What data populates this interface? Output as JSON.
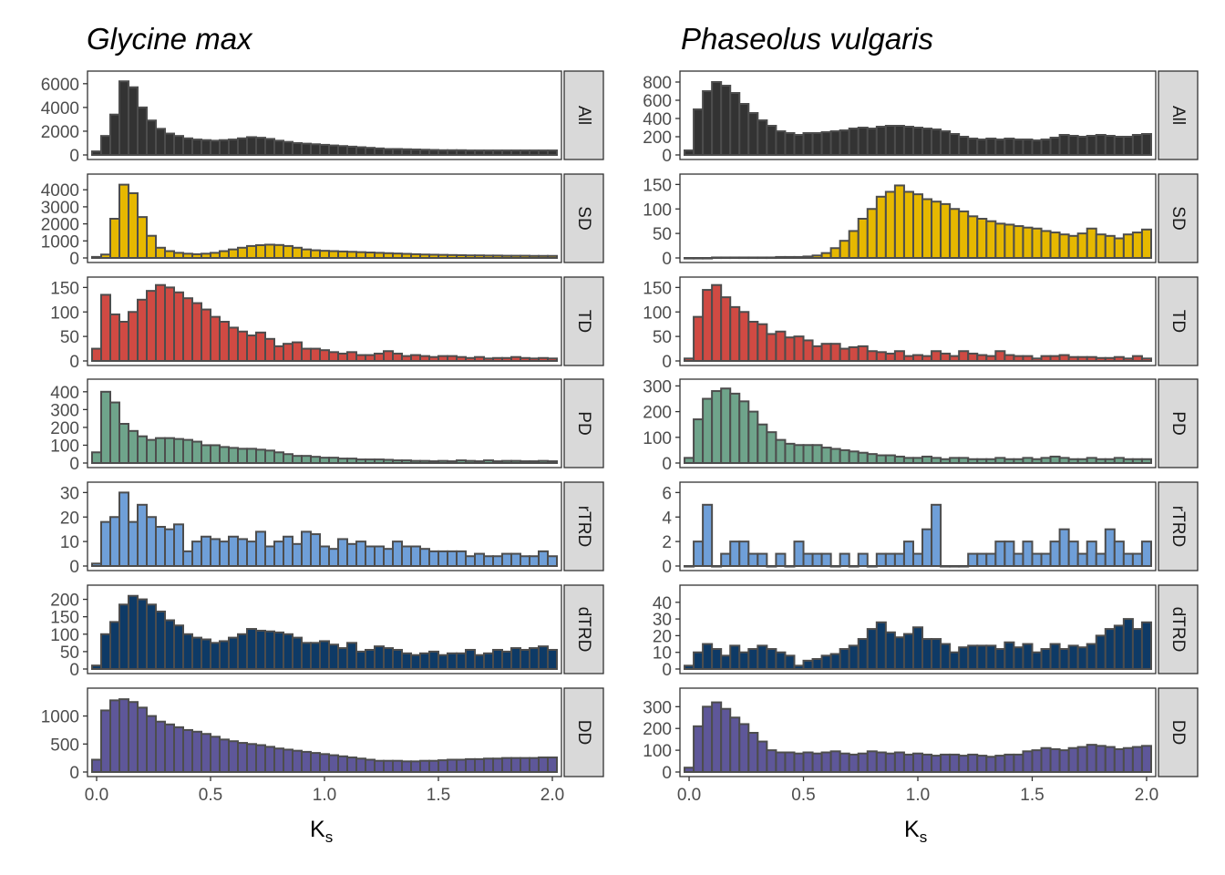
{
  "xlabel_main": "K",
  "xlabel_sub": "s",
  "x_ticks": [
    "0.0",
    "0.5",
    "1.0",
    "1.5",
    "2.0"
  ],
  "chart_data": [
    {
      "type": "bar",
      "title": "Glycine max",
      "bin_width": 0.04,
      "bin_start": -0.02,
      "xlim": [
        -0.04,
        2.04
      ],
      "panels": [
        {
          "label": "All",
          "color": "#333333",
          "ylim": [
            0,
            6600
          ],
          "yticks": [
            0,
            2000,
            4000,
            6000
          ],
          "values": [
            300,
            1600,
            3400,
            6200,
            5700,
            4000,
            2900,
            2200,
            1800,
            1600,
            1400,
            1300,
            1250,
            1200,
            1250,
            1300,
            1400,
            1500,
            1450,
            1350,
            1200,
            1100,
            1000,
            950,
            900,
            850,
            800,
            750,
            700,
            650,
            600,
            550,
            500,
            500,
            480,
            460,
            440,
            420,
            400,
            400,
            400,
            380,
            380,
            380,
            380,
            380,
            380,
            380,
            380,
            380,
            380,
            380,
            380,
            380,
            380,
            380,
            380,
            380,
            380,
            380,
            380,
            380,
            380,
            380,
            380,
            380,
            380,
            380,
            380,
            380,
            380,
            380,
            380,
            380,
            380,
            380,
            380,
            380,
            380,
            380,
            380,
            380,
            380,
            380,
            380,
            380,
            380,
            380,
            380,
            380,
            380,
            380,
            380,
            380,
            380,
            380,
            380,
            380,
            380,
            380,
            380,
            380,
            380,
            380,
            380,
            380,
            380,
            380,
            380,
            380,
            380,
            380,
            380,
            380,
            380,
            380,
            380,
            380,
            380,
            380,
            380,
            380
          ]
        },
        {
          "label": "SD",
          "color": "#E6B800",
          "ylim": [
            0,
            4600
          ],
          "yticks": [
            0,
            1000,
            2000,
            3000,
            4000
          ],
          "values": [
            60,
            200,
            2300,
            4300,
            3800,
            2400,
            1300,
            600,
            400,
            300,
            250,
            220,
            250,
            300,
            400,
            500,
            600,
            700,
            750,
            780,
            760,
            700,
            600,
            500,
            450,
            420,
            400,
            380,
            360,
            340,
            320,
            300,
            280,
            260,
            240,
            220,
            200,
            190,
            180,
            170,
            160,
            150,
            150,
            140,
            140,
            130,
            130,
            130,
            120,
            120,
            120,
            110,
            110,
            110,
            100,
            100,
            100,
            100,
            100,
            100,
            100
          ]
        },
        {
          "label": "TD",
          "color": "#D04A43",
          "ylim": [
            0,
            160
          ],
          "yticks": [
            0,
            50,
            100,
            150
          ],
          "values": [
            25,
            135,
            95,
            80,
            100,
            125,
            143,
            155,
            150,
            140,
            128,
            118,
            105,
            90,
            80,
            68,
            60,
            52,
            58,
            45,
            30,
            35,
            38,
            25,
            25,
            22,
            18,
            15,
            18,
            12,
            12,
            15,
            20,
            15,
            10,
            12,
            10,
            8,
            10,
            10,
            8,
            6,
            8,
            5,
            6,
            6,
            8,
            6,
            5,
            6,
            5,
            6,
            5,
            5,
            5,
            6,
            5,
            5,
            5,
            5,
            5,
            8
          ]
        },
        {
          "label": "PD",
          "color": "#6FA48B",
          "ylim": [
            0,
            440
          ],
          "yticks": [
            0,
            100,
            200,
            300,
            400
          ],
          "values": [
            60,
            400,
            340,
            220,
            180,
            150,
            130,
            140,
            140,
            135,
            130,
            120,
            100,
            100,
            90,
            85,
            80,
            80,
            75,
            70,
            60,
            50,
            40,
            40,
            35,
            30,
            30,
            25,
            25,
            20,
            20,
            20,
            18,
            15,
            15,
            12,
            12,
            10,
            12,
            10,
            15,
            12,
            10,
            15,
            10,
            12,
            12,
            10,
            10,
            12,
            10,
            10,
            10,
            12,
            10,
            10,
            10,
            10,
            10,
            10,
            10
          ]
        },
        {
          "label": "rTRD",
          "color": "#6F9FD8",
          "ylim": [
            0,
            32
          ],
          "yticks": [
            0,
            10,
            20,
            30
          ],
          "values": [
            1,
            18,
            20,
            30,
            18,
            25,
            20,
            16,
            15,
            17,
            6,
            10,
            12,
            11,
            10,
            12,
            11,
            10,
            14,
            8,
            10,
            12,
            9,
            14,
            13,
            8,
            7,
            11,
            9,
            10,
            8,
            8,
            7,
            10,
            8,
            8,
            7,
            6,
            6,
            6,
            6,
            4,
            5,
            4,
            4,
            5,
            5,
            4,
            4,
            6,
            4,
            8,
            7,
            4,
            4,
            5,
            4,
            8,
            8,
            3,
            5,
            3
          ]
        },
        {
          "label": "dTRD",
          "color": "#0E3A66",
          "ylim": [
            0,
            225
          ],
          "yticks": [
            0,
            50,
            100,
            150,
            200
          ],
          "values": [
            10,
            100,
            135,
            185,
            210,
            200,
            185,
            165,
            140,
            125,
            100,
            90,
            85,
            75,
            80,
            90,
            100,
            115,
            110,
            108,
            105,
            100,
            90,
            75,
            75,
            80,
            70,
            60,
            75,
            50,
            55,
            65,
            60,
            55,
            45,
            40,
            45,
            50,
            40,
            45,
            45,
            55,
            40,
            45,
            55,
            50,
            60,
            55,
            60,
            65,
            55,
            70,
            70,
            80,
            85,
            70,
            85,
            90,
            85,
            75,
            60,
            15
          ]
        },
        {
          "label": "DD",
          "color": "#5E5799",
          "ylim": [
            0,
            1400
          ],
          "yticks": [
            0,
            500,
            1000
          ],
          "values": [
            220,
            1100,
            1280,
            1300,
            1250,
            1150,
            1000,
            900,
            850,
            800,
            750,
            720,
            680,
            630,
            580,
            550,
            520,
            500,
            480,
            450,
            420,
            400,
            380,
            360,
            340,
            320,
            300,
            280,
            260,
            240,
            220,
            200,
            200,
            200,
            190,
            190,
            200,
            200,
            210,
            220,
            220,
            230,
            230,
            240,
            240,
            250,
            250,
            250,
            250,
            260,
            260,
            260,
            250,
            250,
            240,
            230,
            230,
            230,
            220,
            220,
            220,
            220,
            220,
            220
          ]
        }
      ]
    },
    {
      "type": "bar",
      "title": "Phaseolus vulgaris",
      "bin_width": 0.04,
      "bin_start": -0.02,
      "xlim": [
        -0.04,
        2.04
      ],
      "panels": [
        {
          "label": "All",
          "color": "#333333",
          "ylim": [
            0,
            860
          ],
          "yticks": [
            0,
            200,
            400,
            600,
            800
          ],
          "values": [
            50,
            500,
            700,
            800,
            760,
            680,
            560,
            460,
            380,
            320,
            260,
            240,
            220,
            240,
            240,
            250,
            260,
            270,
            290,
            300,
            290,
            310,
            320,
            320,
            310,
            300,
            290,
            280,
            260,
            230,
            200,
            180,
            170,
            180,
            170,
            180,
            170,
            170,
            160,
            170,
            190,
            220,
            210,
            200,
            210,
            220,
            210,
            200,
            200,
            220,
            230,
            240,
            230,
            210,
            200,
            200,
            200,
            200,
            190,
            190,
            200,
            200,
            200,
            190
          ]
        },
        {
          "label": "SD",
          "color": "#E6B800",
          "ylim": [
            0,
            160
          ],
          "yticks": [
            0,
            50,
            100,
            150
          ],
          "values": [
            0,
            0,
            0,
            1,
            1,
            1,
            1,
            1,
            1,
            1,
            2,
            2,
            2,
            3,
            5,
            10,
            20,
            35,
            55,
            80,
            100,
            125,
            135,
            148,
            135,
            130,
            120,
            115,
            110,
            100,
            95,
            85,
            80,
            75,
            70,
            68,
            65,
            62,
            60,
            55,
            52,
            48,
            45,
            50,
            60,
            48,
            45,
            40,
            48,
            52,
            58,
            50,
            48,
            45,
            50,
            48,
            48,
            50,
            45,
            50,
            48,
            40,
            52,
            50,
            48,
            40,
            50,
            40,
            45,
            35,
            35,
            25,
            10
          ]
        },
        {
          "label": "TD",
          "color": "#D04A43",
          "ylim": [
            0,
            160
          ],
          "yticks": [
            0,
            50,
            100,
            150
          ],
          "values": [
            5,
            90,
            145,
            155,
            130,
            110,
            100,
            80,
            75,
            55,
            60,
            48,
            50,
            42,
            30,
            35,
            35,
            25,
            28,
            30,
            20,
            18,
            15,
            20,
            10,
            12,
            10,
            20,
            15,
            10,
            20,
            15,
            12,
            10,
            20,
            12,
            10,
            10,
            5,
            10,
            10,
            12,
            8,
            8,
            8,
            6,
            6,
            8,
            5,
            10,
            5,
            8,
            5,
            5,
            5,
            5,
            5,
            5,
            5,
            5
          ]
        },
        {
          "label": "PD",
          "color": "#6FA48B",
          "ylim": [
            0,
            305
          ],
          "yticks": [
            0,
            100,
            200,
            300
          ],
          "values": [
            20,
            170,
            250,
            280,
            290,
            270,
            240,
            200,
            150,
            120,
            90,
            75,
            70,
            70,
            70,
            60,
            55,
            50,
            45,
            40,
            35,
            30,
            30,
            25,
            20,
            20,
            25,
            20,
            15,
            20,
            20,
            15,
            15,
            15,
            20,
            15,
            15,
            20,
            15,
            20,
            25,
            20,
            15,
            15,
            20,
            15,
            15,
            20,
            15,
            15,
            15,
            15,
            15,
            15,
            15,
            15,
            15,
            15,
            15,
            15,
            15,
            15,
            15,
            15
          ]
        },
        {
          "label": "rTRD",
          "color": "#6F9FD8",
          "ylim": [
            0,
            6.4
          ],
          "yticks": [
            0,
            2,
            4,
            6
          ],
          "values": [
            0,
            2,
            5,
            0,
            1,
            2,
            2,
            1,
            1,
            0,
            1,
            0,
            2,
            1,
            1,
            1,
            0,
            1,
            0,
            1,
            0,
            1,
            1,
            1,
            2,
            1,
            3,
            5,
            0,
            0,
            0,
            1,
            1,
            1,
            2,
            2,
            1,
            2,
            1,
            1,
            2,
            3,
            2,
            1,
            2,
            1,
            3,
            2,
            1,
            1,
            2,
            3,
            5,
            5,
            4,
            3,
            2,
            2,
            1,
            6
          ]
        },
        {
          "label": "dTRD",
          "color": "#0E3A66",
          "ylim": [
            0,
            47
          ],
          "yticks": [
            0,
            10,
            20,
            30,
            40
          ],
          "values": [
            2,
            10,
            15,
            12,
            8,
            14,
            10,
            12,
            14,
            12,
            10,
            8,
            2,
            5,
            6,
            8,
            9,
            12,
            14,
            18,
            24,
            28,
            22,
            19,
            21,
            25,
            18,
            18,
            15,
            10,
            13,
            14,
            14,
            14,
            12,
            16,
            13,
            15,
            10,
            12,
            15,
            12,
            14,
            13,
            15,
            20,
            24,
            26,
            30,
            24,
            28,
            35,
            40,
            38,
            37,
            35,
            38,
            40,
            38,
            35,
            44,
            30,
            45,
            35,
            20,
            10
          ]
        },
        {
          "label": "DD",
          "color": "#5E5799",
          "ylim": [
            0,
            360
          ],
          "yticks": [
            0,
            100,
            200,
            300
          ],
          "values": [
            20,
            210,
            300,
            320,
            290,
            250,
            220,
            180,
            140,
            100,
            90,
            90,
            85,
            90,
            85,
            90,
            95,
            85,
            80,
            85,
            95,
            90,
            85,
            90,
            80,
            85,
            80,
            75,
            80,
            80,
            75,
            80,
            75,
            70,
            75,
            80,
            80,
            95,
            100,
            110,
            105,
            100,
            110,
            115,
            125,
            120,
            115,
            105,
            110,
            115,
            120,
            120,
            130,
            115,
            110,
            105,
            115,
            100,
            80,
            20
          ]
        }
      ]
    }
  ]
}
